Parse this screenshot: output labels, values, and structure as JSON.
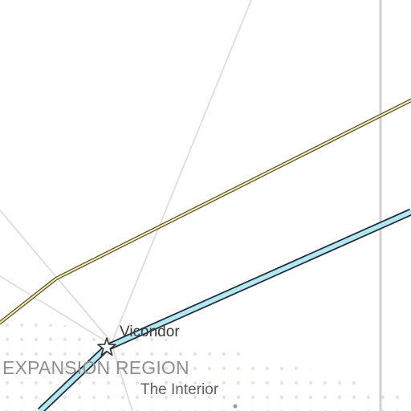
{
  "map": {
    "type": "galaxy-map",
    "background_color": "#ffffff",
    "grid_line_color": "#dddddd",
    "border_line_color": "#d0d0d0",
    "region_dot_color": "#e4e4dc",
    "labels": {
      "city": "Vicondor",
      "region": "EXPANSION REGION",
      "subregion": "The Interior"
    },
    "routes": [
      {
        "name": "yellow-hyperlane",
        "fill_color": "#f7edb4",
        "outline_color": "#5a5228"
      },
      {
        "name": "blue-hyperlane",
        "fill_color": "#b5e6f3",
        "outline_color": "#1d2f36"
      }
    ],
    "marker": {
      "type": "star",
      "fill_color": "#ffffff",
      "outline_color": "#333333"
    }
  }
}
